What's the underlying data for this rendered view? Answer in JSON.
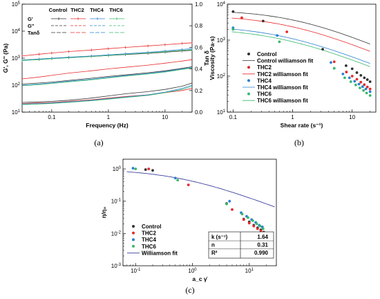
{
  "chart_data": [
    {
      "type": "line",
      "panel_label": "(a)",
      "xlabel": "Frequency (Hz)",
      "ylabel": "G', G'' (Pa)",
      "y2label": "Tan δ",
      "xscale": "log",
      "yscale": "log",
      "xlim": [
        0.03,
        30
      ],
      "ylim": [
        10,
        100000
      ],
      "y2lim": [
        0,
        1.0
      ],
      "xticks": [
        "0.1",
        "1",
        "10"
      ],
      "yticks": [
        "10^1",
        "10^2",
        "10^3",
        "10^4",
        "10^5"
      ],
      "y2ticks": [
        "0.0",
        "0.2",
        "0.4",
        "0.6",
        "0.8",
        "1.0"
      ],
      "legend_columns": [
        "Control",
        "THC2",
        "THC4",
        "THC6"
      ],
      "legend_rows": [
        "G'",
        "G''",
        "Tanδ"
      ],
      "colors": {
        "Control": "#333333",
        "THC2": "#e8292b",
        "THC4": "#2a7fd4",
        "THC6": "#39b86a"
      },
      "x": [
        0.03,
        0.06,
        0.1,
        0.2,
        0.5,
        1,
        2,
        5,
        10,
        20,
        30
      ],
      "series": [
        {
          "name": "Control",
          "quantity": "G'",
          "values": [
            850,
            920,
            980,
            1050,
            1150,
            1250,
            1350,
            1500,
            1650,
            1850,
            1950
          ]
        },
        {
          "name": "THC2",
          "quantity": "G'",
          "values": [
            1200,
            1400,
            1550,
            1750,
            2000,
            2250,
            2500,
            2850,
            3150,
            3500,
            3700
          ]
        },
        {
          "name": "THC4",
          "quantity": "G'",
          "values": [
            850,
            920,
            990,
            1080,
            1200,
            1320,
            1450,
            1650,
            1850,
            2100,
            2250
          ]
        },
        {
          "name": "THC6",
          "quantity": "G'",
          "values": [
            820,
            880,
            950,
            1030,
            1150,
            1260,
            1380,
            1560,
            1730,
            1950,
            2050
          ]
        },
        {
          "name": "Control",
          "quantity": "G''",
          "values": [
            110,
            120,
            130,
            150,
            180,
            210,
            240,
            290,
            340,
            420,
            480
          ]
        },
        {
          "name": "THC2",
          "quantity": "G''",
          "values": [
            170,
            200,
            230,
            280,
            340,
            400,
            460,
            550,
            650,
            780,
            880
          ]
        },
        {
          "name": "THC4",
          "quantity": "G''",
          "values": [
            100,
            110,
            120,
            140,
            165,
            195,
            225,
            270,
            320,
            400,
            450
          ]
        },
        {
          "name": "THC6",
          "quantity": "G''",
          "values": [
            95,
            105,
            115,
            133,
            158,
            185,
            215,
            260,
            305,
            380,
            430
          ]
        },
        {
          "name": "Control",
          "quantity": "Tanδ",
          "values": [
            0.09,
            0.095,
            0.1,
            0.11,
            0.13,
            0.15,
            0.17,
            0.19,
            0.21,
            0.24,
            0.27
          ]
        },
        {
          "name": "THC2",
          "quantity": "Tanδ",
          "values": [
            0.08,
            0.085,
            0.09,
            0.1,
            0.115,
            0.13,
            0.145,
            0.16,
            0.18,
            0.2,
            0.22
          ]
        },
        {
          "name": "THC4",
          "quantity": "Tanδ",
          "values": [
            0.075,
            0.08,
            0.085,
            0.095,
            0.11,
            0.125,
            0.14,
            0.16,
            0.185,
            0.22,
            0.25
          ]
        },
        {
          "name": "THC6",
          "quantity": "Tanδ",
          "values": [
            0.07,
            0.075,
            0.08,
            0.09,
            0.105,
            0.12,
            0.135,
            0.155,
            0.18,
            0.21,
            0.24
          ]
        }
      ]
    },
    {
      "type": "scatter",
      "panel_label": "(b)",
      "xlabel": "Shear rate (s⁻¹)",
      "ylabel": "Viscosity (Pa·s)",
      "xscale": "log",
      "yscale": "log",
      "xlim": [
        0.08,
        25
      ],
      "ylim": [
        10,
        10000
      ],
      "xticks": [
        "0.1",
        "1",
        "10"
      ],
      "yticks": [
        "10^1",
        "10^2",
        "10^3",
        "10^4"
      ],
      "legend": [
        "Control",
        "Control williamson fit",
        "THC2",
        "THC2 williamson fit",
        "THC4",
        "THC4 williamson fit",
        "THC6",
        "THC6 williamson fit"
      ],
      "series": [
        {
          "name": "Control",
          "color": "#333333",
          "x": [
            0.1,
            0.32,
            3.2,
            7.9,
            10,
            12,
            14,
            16,
            18,
            20
          ],
          "y": [
            6200,
            3400,
            560,
            195,
            160,
            125,
            105,
            90,
            80,
            70
          ]
        },
        {
          "name": "THC2",
          "color": "#e8292b",
          "x": [
            0.14,
            0.8,
            5,
            8,
            10,
            12,
            14,
            16,
            18,
            20
          ],
          "y": [
            4200,
            1700,
            250,
            130,
            100,
            82,
            68,
            58,
            50,
            44
          ]
        },
        {
          "name": "THC4",
          "color": "#2a7fd4",
          "x": [
            0.1,
            0.55,
            4.4,
            7,
            9,
            11,
            13,
            15,
            17,
            20
          ],
          "y": [
            2200,
            1350,
            240,
            115,
            90,
            72,
            60,
            51,
            44,
            37
          ]
        },
        {
          "name": "THC6",
          "color": "#39b86a",
          "x": [
            0.1,
            0.6,
            5,
            7.5,
            9.5,
            11.5,
            13.5,
            15.5,
            17.5,
            20
          ],
          "y": [
            2000,
            900,
            165,
            90,
            70,
            57,
            47,
            40,
            34,
            29
          ]
        }
      ],
      "fits": [
        {
          "name": "Control williamson fit",
          "color": "#333333",
          "eta0": 7000,
          "k": 0.9,
          "n": 0.28
        },
        {
          "name": "THC2 williamson fit",
          "color": "#e8292b",
          "eta0": 5000,
          "k": 1.2,
          "n": 0.3
        },
        {
          "name": "THC4 williamson fit",
          "color": "#2a7fd4",
          "eta0": 2600,
          "k": 1.6,
          "n": 0.32
        },
        {
          "name": "THC6 williamson fit",
          "color": "#39b86a",
          "eta0": 2200,
          "k": 1.7,
          "n": 0.32
        }
      ]
    },
    {
      "type": "scatter",
      "panel_label": "(c)",
      "xlabel": "a_c γ̇",
      "ylabel": "η/η₀",
      "xscale": "log",
      "yscale": "log",
      "xlim": [
        0.06,
        30
      ],
      "ylim": [
        0.001,
        2
      ],
      "xticks": [
        "10^-1",
        "10^0",
        "10^1"
      ],
      "yticks": [
        "10^-3",
        "10^-2",
        "10^-1",
        "10^0"
      ],
      "legend": [
        "Control",
        "THC2",
        "THC4",
        "THC6",
        "Williamson fit"
      ],
      "fit_color": "#3b3f9e",
      "fit_stats": [
        {
          "label": "k (s⁻¹)",
          "value": "1.64"
        },
        {
          "label": "n",
          "value": "0.31"
        },
        {
          "label": "R²",
          "value": "0.990"
        }
      ],
      "fit_params": {
        "k": 1.64,
        "n": 0.31
      },
      "series": [
        {
          "name": "Control",
          "color": "#333333",
          "x": [
            0.15,
            0.2,
            4,
            8,
            10,
            12,
            14,
            16,
            18
          ],
          "y": [
            0.95,
            0.9,
            0.085,
            0.028,
            0.023,
            0.018,
            0.015,
            0.013,
            0.011
          ]
        },
        {
          "name": "THC2",
          "color": "#e8292b",
          "x": [
            0.17,
            0.85,
            5,
            8,
            10,
            12,
            14,
            16,
            18
          ],
          "y": [
            1.0,
            0.32,
            0.055,
            0.027,
            0.021,
            0.017,
            0.014,
            0.012,
            0.0105
          ]
        },
        {
          "name": "THC4",
          "color": "#2a7fd4",
          "x": [
            0.09,
            0.5,
            4.5,
            7.2,
            9,
            11,
            13,
            15,
            17
          ],
          "y": [
            1.05,
            0.52,
            0.1,
            0.044,
            0.034,
            0.027,
            0.022,
            0.018,
            0.016
          ]
        },
        {
          "name": "THC6",
          "color": "#39b86a",
          "x": [
            0.1,
            0.55,
            4,
            7.5,
            9.5,
            11.5,
            13.5,
            15.5,
            17.5
          ],
          "y": [
            1.0,
            0.45,
            0.082,
            0.04,
            0.031,
            0.025,
            0.02,
            0.017,
            0.014
          ]
        }
      ]
    }
  ]
}
